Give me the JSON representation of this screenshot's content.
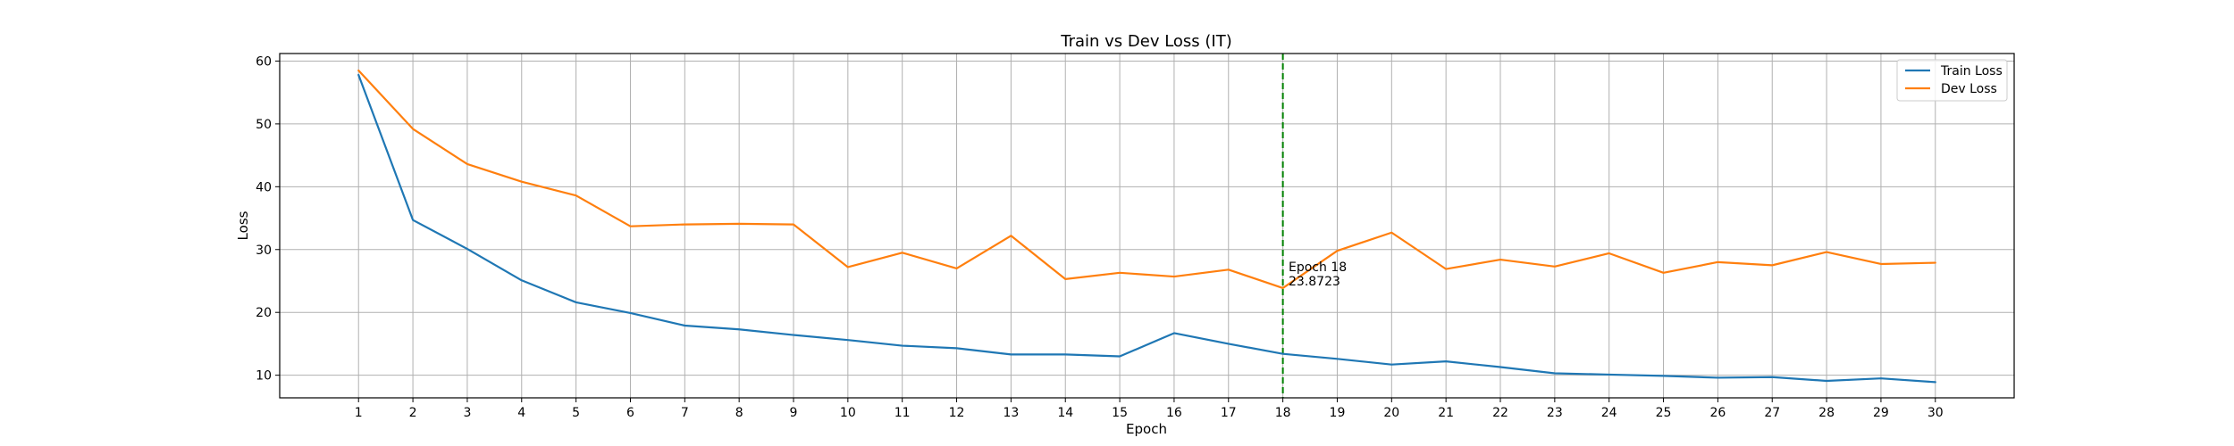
{
  "chart_data": {
    "type": "line",
    "title": "Train vs Dev Loss (IT)",
    "xlabel": "Epoch",
    "ylabel": "Loss",
    "x": [
      1,
      2,
      3,
      4,
      5,
      6,
      7,
      8,
      9,
      10,
      11,
      12,
      13,
      14,
      15,
      16,
      17,
      18,
      19,
      20,
      21,
      22,
      23,
      24,
      25,
      26,
      27,
      28,
      29,
      30
    ],
    "xlim": [
      -0.45,
      31.45
    ],
    "ylim": [
      6.4,
      61.2
    ],
    "yticks": [
      10,
      20,
      30,
      40,
      50,
      60
    ],
    "grid": true,
    "legend_position": "top-right",
    "series": [
      {
        "name": "Train Loss",
        "color": "#1f77b4",
        "values": [
          57.8,
          34.7,
          30.1,
          25.1,
          21.6,
          19.9,
          17.9,
          17.3,
          16.4,
          15.6,
          14.7,
          14.3,
          13.3,
          13.3,
          13.0,
          16.7,
          15.0,
          13.4,
          12.6,
          11.7,
          12.2,
          11.3,
          10.3,
          10.1,
          9.9,
          9.6,
          9.7,
          9.1,
          9.5,
          8.9
        ]
      },
      {
        "name": "Dev Loss",
        "color": "#ff7f0e",
        "values": [
          58.5,
          49.2,
          43.6,
          40.8,
          38.6,
          33.7,
          34.0,
          34.1,
          34.0,
          27.2,
          29.5,
          27.0,
          32.2,
          25.3,
          26.3,
          25.7,
          26.8,
          23.8723,
          29.8,
          32.7,
          26.9,
          28.4,
          27.3,
          29.4,
          26.3,
          28.0,
          27.5,
          29.6,
          27.7,
          27.9
        ]
      }
    ],
    "annotation": {
      "x": 18,
      "y": 23.8723,
      "line_color": "#008000",
      "line_style": "dashed",
      "label_line1": "Epoch 18",
      "label_line2": "23.8723"
    }
  }
}
